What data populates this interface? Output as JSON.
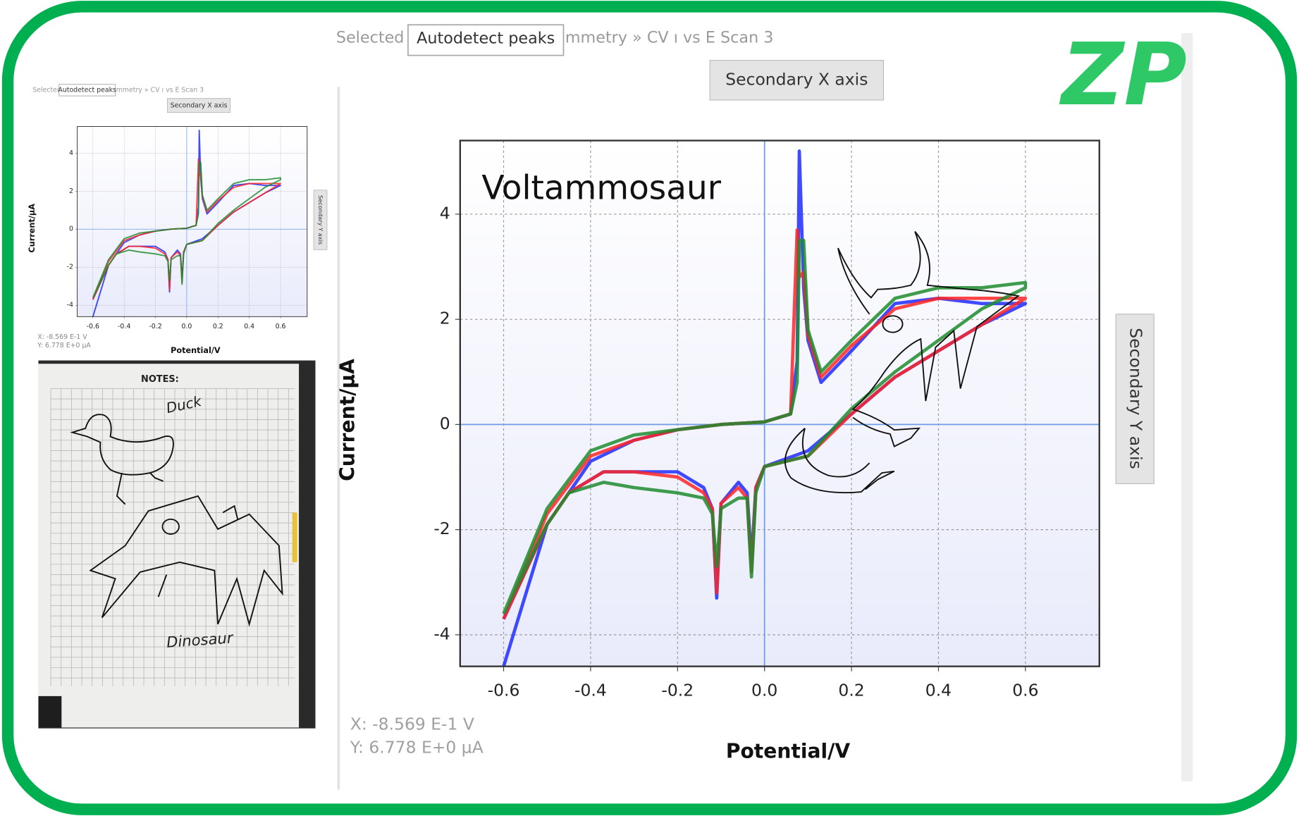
{
  "chart_data": {
    "type": "line",
    "title": "Voltammosaur",
    "xlabel": "Potential/V",
    "ylabel": "Current/µA",
    "x": [
      -0.6,
      -0.5,
      -0.4,
      -0.3,
      -0.2,
      -0.1,
      0,
      0.06,
      0.075,
      0.08,
      0.09,
      0.1,
      0.13,
      0.2,
      0.3,
      0.4,
      0.5,
      0.6,
      0.6,
      0.5,
      0.4,
      0.3,
      0.2,
      0.1,
      0,
      -0.02,
      -0.03,
      -0.04,
      -0.06,
      -0.1,
      -0.11,
      -0.12,
      -0.14,
      -0.2,
      -0.3,
      -0.37,
      -0.45,
      -0.5,
      -0.6
    ],
    "series": [
      {
        "name": null,
        "color": "#1f2cff",
        "values": [
          -4.6,
          -1.9,
          -0.7,
          -0.3,
          -0.1,
          0,
          0.05,
          0.2,
          1.2,
          5.2,
          2.6,
          1.6,
          0.8,
          1.4,
          2.3,
          2.4,
          2.3,
          2.3,
          2.3,
          1.9,
          1.4,
          0.9,
          0.2,
          -0.5,
          -0.8,
          -1.2,
          -2.6,
          -1.3,
          -1.1,
          -1.5,
          -3.3,
          -1.6,
          -1.2,
          -0.9,
          -0.9,
          -0.9,
          -1.3,
          -1.9,
          -3.7
        ]
      },
      {
        "name": null,
        "color": "#ff2424",
        "values": [
          -3.7,
          -1.7,
          -0.6,
          -0.3,
          -0.1,
          0,
          0.05,
          0.2,
          3.7,
          2.8,
          2.9,
          1.7,
          0.9,
          1.5,
          2.2,
          2.4,
          2.4,
          2.4,
          2.4,
          1.9,
          1.4,
          0.9,
          0.2,
          -0.6,
          -0.8,
          -1.2,
          -2.8,
          -1.4,
          -1.2,
          -1.5,
          -3.2,
          -1.6,
          -1.3,
          -1.0,
          -0.9,
          -0.9,
          -1.3,
          -1.9,
          -3.7
        ]
      },
      {
        "name": null,
        "color": "#1e8c2e",
        "values": [
          -3.6,
          -1.6,
          -0.5,
          -0.2,
          -0.1,
          0,
          0.05,
          0.2,
          0.8,
          3.5,
          3.5,
          1.8,
          1.0,
          1.6,
          2.4,
          2.6,
          2.6,
          2.7,
          2.6,
          2.2,
          1.6,
          1.0,
          0.3,
          -0.6,
          -0.8,
          -1.3,
          -2.9,
          -1.4,
          -1.4,
          -1.6,
          -2.7,
          -1.7,
          -1.4,
          -1.3,
          -1.2,
          -1.1,
          -1.3,
          -1.9,
          -3.6
        ]
      }
    ],
    "xlim": [
      -0.7,
      0.77
    ],
    "ylim": [
      -4.6,
      5.4
    ],
    "xticks": [
      -0.6,
      -0.4,
      -0.2,
      {
        "value": 0,
        "label": "0.0"
      },
      0.2,
      0.4,
      0.6
    ],
    "yticks": [
      -4,
      -2,
      0,
      2,
      4
    ],
    "grid": true
  },
  "toolbar": {
    "selected": "Selected",
    "button": "Autodetect peaks",
    "breadcrumb": "mmetry » CV ı vs E Scan 3",
    "secondary_x": "Secondary X axis",
    "secondary_y": "Secondary Y axis"
  },
  "cursor": {
    "x": "X: -8.569 E-1 V",
    "y": "Y: 6.778 E+0 µA"
  },
  "logo": "ZP",
  "notes": {
    "heading": "NOTES:",
    "labels": [
      "Duck",
      "Dinosaur"
    ]
  }
}
